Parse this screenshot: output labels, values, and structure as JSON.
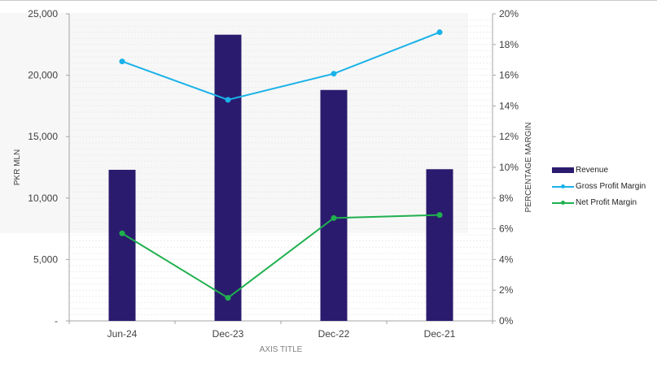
{
  "chart_data": {
    "type": "bar",
    "categories": [
      "Jun-24",
      "Dec-23",
      "Dec-22",
      "Dec-21"
    ],
    "series": [
      {
        "name": "Revenue",
        "type": "bar",
        "axis": "left",
        "color": "#2b1b6e",
        "values": [
          12300,
          23300,
          18800,
          12350
        ]
      },
      {
        "name": "Gross Profit Margin",
        "type": "line",
        "axis": "right",
        "color": "#19b2e8",
        "values": [
          16.9,
          14.4,
          16.1,
          18.8
        ]
      },
      {
        "name": "Net Profit Margin",
        "type": "line",
        "axis": "right",
        "color": "#1fb04e",
        "values": [
          5.7,
          1.5,
          6.7,
          6.9
        ]
      }
    ],
    "xlabel": "AXIS TITLE",
    "ylabel": "PKR MLN",
    "y2label": "PERCENTAGE MARGIN",
    "ylim": [
      0,
      25000
    ],
    "y2lim": [
      0,
      20
    ],
    "yticks": [
      "-",
      "5,000",
      "10,000",
      "15,000",
      "20,000",
      "25,000"
    ],
    "y2ticks": [
      "0%",
      "2%",
      "4%",
      "6%",
      "8%",
      "10%",
      "12%",
      "14%",
      "16%",
      "18%",
      "20%"
    ],
    "legend_position": "right",
    "grid": true
  }
}
